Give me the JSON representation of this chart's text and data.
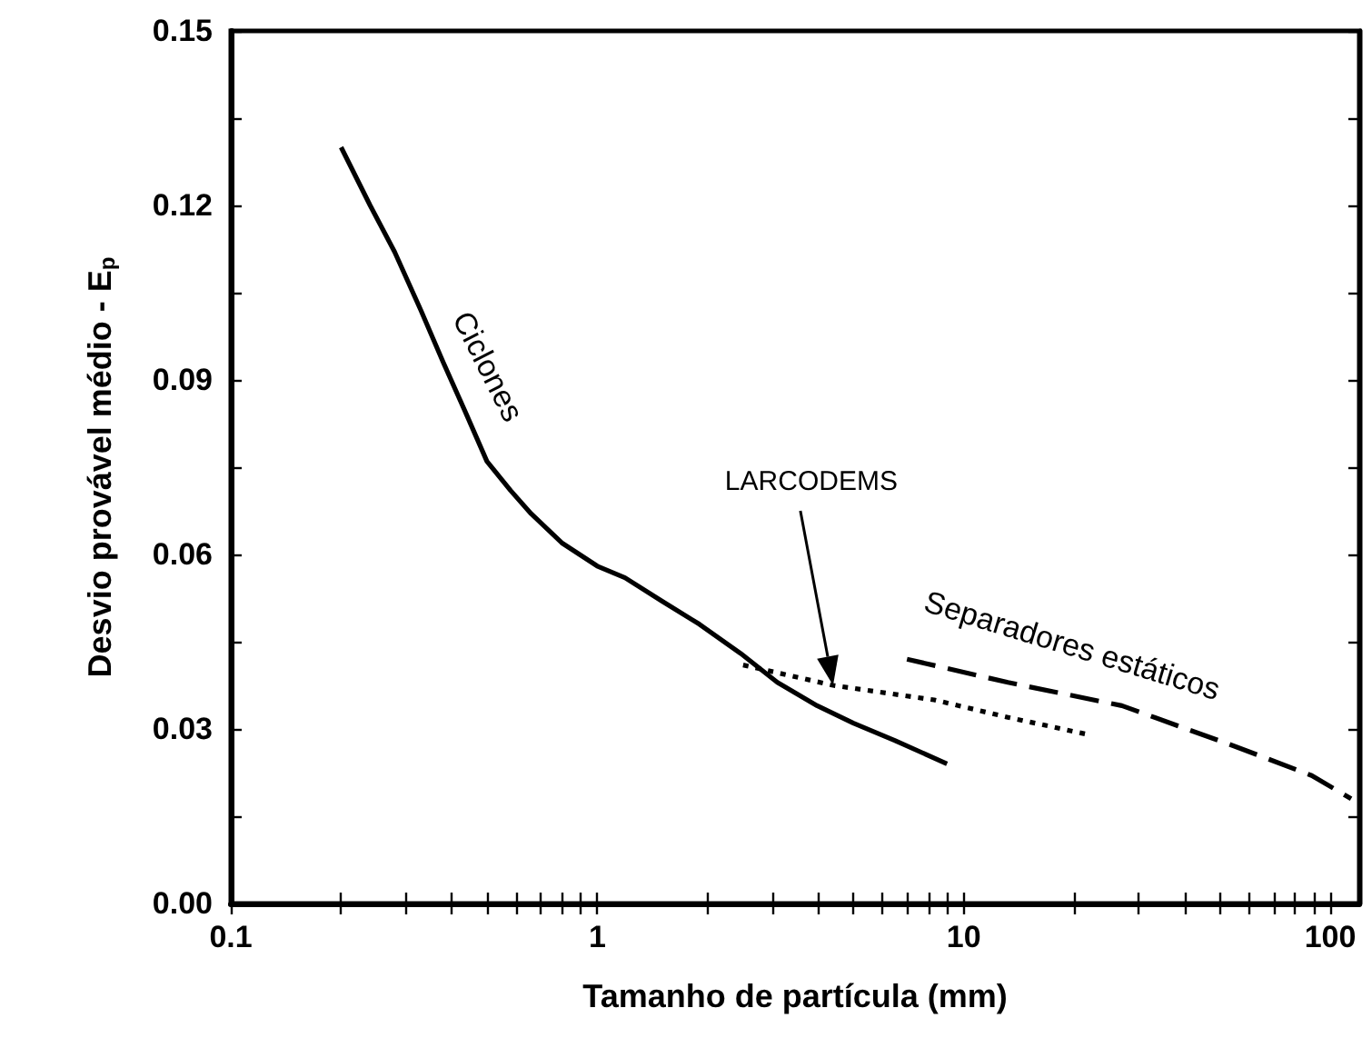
{
  "chart_data": {
    "type": "line",
    "xlabel": "Tamanho de partícula (mm)",
    "ylabel": "Desvio provável médio - E$_{p}$",
    "log": "x",
    "xlim": [
      0.1,
      120
    ],
    "ylim": [
      0,
      0.15
    ],
    "xticks": [
      0.1,
      {
        "value": 0.2,
        "label": null
      },
      {
        "value": 0.3,
        "label": null
      },
      {
        "value": 0.4,
        "label": null
      },
      {
        "value": 0.5,
        "label": null
      },
      {
        "value": 0.6,
        "label": null
      },
      {
        "value": 0.7,
        "label": null
      },
      {
        "value": 0.8,
        "label": null
      },
      {
        "value": 0.9,
        "label": null
      },
      1,
      {
        "value": 2,
        "label": null
      },
      {
        "value": 3,
        "label": null
      },
      {
        "value": 4,
        "label": null
      },
      {
        "value": 5,
        "label": null
      },
      {
        "value": 6,
        "label": null
      },
      {
        "value": 7,
        "label": null
      },
      {
        "value": 8,
        "label": null
      },
      {
        "value": 9,
        "label": null
      },
      10,
      {
        "value": 20,
        "label": null
      },
      {
        "value": 30,
        "label": null
      },
      {
        "value": 40,
        "label": null
      },
      {
        "value": 50,
        "label": null
      },
      {
        "value": 60,
        "label": null
      },
      {
        "value": 70,
        "label": null
      },
      {
        "value": 80,
        "label": null
      },
      {
        "value": 90,
        "label": null
      },
      100
    ],
    "yticks": [
      {
        "value": 0,
        "label": "0.00"
      },
      {
        "value": 0.015,
        "label": null
      },
      {
        "value": 0.03,
        "label": "0.03"
      },
      {
        "value": 0.045,
        "label": null
      },
      {
        "value": 0.06,
        "label": "0.06"
      },
      {
        "value": 0.075,
        "label": null
      },
      {
        "value": 0.09,
        "label": "0.09"
      },
      {
        "value": 0.105,
        "label": null
      },
      {
        "value": 0.12,
        "label": "0.12"
      },
      {
        "value": 0.135,
        "label": null
      },
      {
        "value": 0.15,
        "label": "0.15"
      }
    ],
    "grid": false,
    "legend": false,
    "marker": "none",
    "annotations": [
      "LARCODEMS"
    ],
    "series": [
      {
        "name": "Ciclones",
        "color": "#000000",
        "line_style": "solid",
        "x": [
          0.2,
          0.24,
          0.28,
          0.33,
          0.38,
          0.44,
          0.5,
          0.58,
          0.66,
          0.8,
          1.0,
          1.19,
          1.5,
          1.9,
          2.46,
          3.1,
          3.98,
          5.0,
          6.5,
          9.0
        ],
        "values": [
          0.13,
          0.12,
          0.112,
          0.102,
          0.093,
          0.084,
          0.076,
          0.071,
          0.067,
          0.062,
          0.058,
          0.056,
          0.052,
          0.048,
          0.043,
          0.038,
          0.034,
          0.031,
          0.028,
          0.024
        ]
      },
      {
        "color": "#000000",
        "line_style": "dotted",
        "x": [
          2.5,
          4.4,
          8.3,
          13.2,
          22
        ],
        "values": [
          0.041,
          0.0375,
          0.035,
          0.032,
          0.029
        ]
      },
      {
        "name": "Separadores estáticos",
        "color": "#000000",
        "line_style": "dashed",
        "x": [
          7.0,
          13.2,
          27,
          55,
          89,
          114
        ],
        "values": [
          0.042,
          0.038,
          0.034,
          0.027,
          0.022,
          0.018
        ]
      }
    ]
  }
}
